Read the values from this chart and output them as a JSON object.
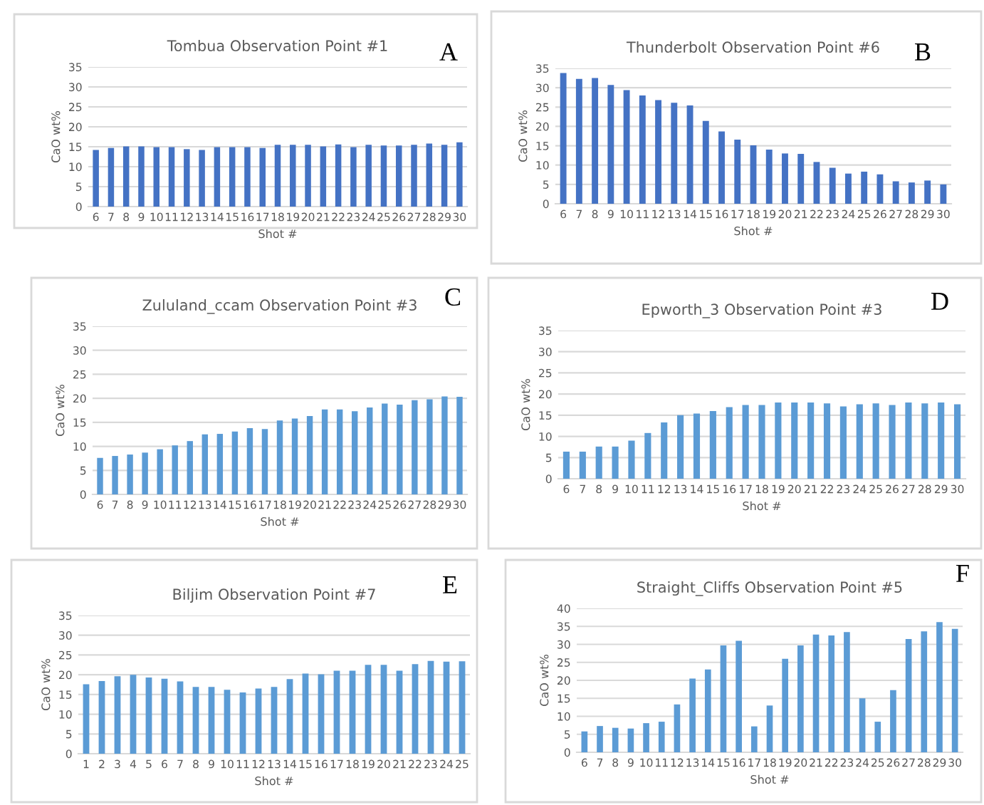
{
  "chart_data": [
    {
      "type": "bar",
      "title": "Tombua Observation Point #1",
      "xlabel": "Shot #",
      "ylabel": "CaO wt%",
      "annotations": [
        "A"
      ],
      "color": "#4472c4",
      "ylim": [
        0,
        35
      ],
      "yticks": [
        0,
        5,
        10,
        15,
        20,
        25,
        30,
        35
      ],
      "grid": "y",
      "categories": [
        "6",
        "7",
        "8",
        "9",
        "10",
        "11",
        "12",
        "13",
        "14",
        "15",
        "16",
        "17",
        "18",
        "19",
        "20",
        "21",
        "22",
        "23",
        "24",
        "25",
        "26",
        "27",
        "28",
        "29",
        "30"
      ],
      "values": [
        14.2,
        14.7,
        15.1,
        15.1,
        14.9,
        14.9,
        14.4,
        14.2,
        14.9,
        14.9,
        14.9,
        14.7,
        15.5,
        15.5,
        15.5,
        15.1,
        15.6,
        14.9,
        15.5,
        15.3,
        15.3,
        15.5,
        15.8,
        15.5,
        16.1
      ]
    },
    {
      "type": "bar",
      "title": "Thunderbolt Observation Point #6",
      "xlabel": "Shot #",
      "ylabel": "CaO wt%",
      "annotations": [
        "B"
      ],
      "color": "#4472c4",
      "ylim": [
        0,
        35
      ],
      "yticks": [
        0,
        5,
        10,
        15,
        20,
        25,
        30,
        35
      ],
      "grid": "y",
      "categories": [
        "6",
        "7",
        "8",
        "9",
        "10",
        "11",
        "12",
        "13",
        "14",
        "15",
        "16",
        "17",
        "18",
        "19",
        "20",
        "21",
        "22",
        "23",
        "24",
        "25",
        "26",
        "27",
        "28",
        "29",
        "30"
      ],
      "values": [
        33.8,
        32.3,
        32.5,
        30.7,
        29.4,
        28.0,
        26.8,
        26.1,
        25.4,
        21.4,
        18.7,
        16.6,
        15.1,
        14.0,
        13.0,
        12.9,
        10.8,
        9.3,
        7.8,
        8.3,
        7.6,
        5.8,
        5.5,
        6.0,
        5.0
      ]
    },
    {
      "type": "bar",
      "title": "Zululand_ccam Observation Point #3",
      "xlabel": "Shot #",
      "ylabel": "CaO wt%",
      "annotations": [
        "C"
      ],
      "color": "#5b9bd5",
      "ylim": [
        0,
        35
      ],
      "yticks": [
        0,
        5,
        10,
        15,
        20,
        25,
        30,
        35
      ],
      "grid": "y",
      "categories": [
        "6",
        "7",
        "8",
        "9",
        "10",
        "11",
        "12",
        "13",
        "14",
        "15",
        "16",
        "17",
        "18",
        "19",
        "20",
        "21",
        "22",
        "23",
        "24",
        "25",
        "26",
        "27",
        "28",
        "29",
        "30"
      ],
      "values": [
        7.6,
        8.0,
        8.3,
        8.7,
        9.4,
        10.2,
        11.1,
        12.5,
        12.6,
        13.1,
        13.8,
        13.6,
        15.4,
        15.8,
        16.3,
        17.7,
        17.7,
        17.3,
        18.1,
        18.9,
        18.7,
        19.6,
        19.8,
        20.4,
        20.3
      ]
    },
    {
      "type": "bar",
      "title": "Epworth_3 Observation Point #3",
      "xlabel": "Shot #",
      "ylabel": "CaO wt%",
      "annotations": [
        "D"
      ],
      "color": "#5b9bd5",
      "ylim": [
        0,
        35
      ],
      "yticks": [
        0,
        5,
        10,
        15,
        20,
        25,
        30,
        35
      ],
      "grid": "y",
      "categories": [
        "6",
        "7",
        "8",
        "9",
        "10",
        "11",
        "12",
        "13",
        "14",
        "15",
        "16",
        "17",
        "18",
        "19",
        "20",
        "21",
        "22",
        "23",
        "24",
        "25",
        "26",
        "27",
        "28",
        "29",
        "30"
      ],
      "values": [
        6.4,
        6.4,
        7.6,
        7.6,
        9.0,
        10.8,
        13.3,
        15.0,
        15.4,
        16.0,
        16.9,
        17.4,
        17.4,
        18.0,
        18.0,
        18.0,
        17.8,
        17.1,
        17.6,
        17.8,
        17.4,
        18.0,
        17.8,
        18.0,
        17.6
      ]
    },
    {
      "type": "bar",
      "title": "Biljim Observation Point #7",
      "xlabel": "Shot #",
      "ylabel": "CaO wt%",
      "annotations": [
        "E"
      ],
      "color": "#5b9bd5",
      "ylim": [
        0,
        35
      ],
      "yticks": [
        0,
        5,
        10,
        15,
        20,
        25,
        30,
        35
      ],
      "grid": "y",
      "categories": [
        "1",
        "2",
        "3",
        "4",
        "5",
        "6",
        "7",
        "8",
        "9",
        "10",
        "11",
        "12",
        "13",
        "14",
        "15",
        "16",
        "17",
        "18",
        "19",
        "20",
        "21",
        "22",
        "23",
        "24",
        "25"
      ],
      "values": [
        17.6,
        18.4,
        19.6,
        20.0,
        19.3,
        19.0,
        18.3,
        16.9,
        16.9,
        16.2,
        15.5,
        16.5,
        16.9,
        18.9,
        20.3,
        20.1,
        21.0,
        21.0,
        22.5,
        22.5,
        21.0,
        22.7,
        23.5,
        23.3,
        23.4
      ]
    },
    {
      "type": "bar",
      "title": "Straight_Cliffs Observation Point #5",
      "xlabel": "Shot #",
      "ylabel": "CaO wt%",
      "annotations": [
        "F"
      ],
      "color": "#5b9bd5",
      "ylim": [
        0,
        40
      ],
      "yticks": [
        0,
        5,
        10,
        15,
        20,
        25,
        30,
        35,
        40
      ],
      "grid": "y",
      "categories": [
        "6",
        "7",
        "8",
        "9",
        "10",
        "11",
        "12",
        "13",
        "14",
        "15",
        "16",
        "17",
        "18",
        "19",
        "20",
        "21",
        "22",
        "23",
        "24",
        "25",
        "26",
        "27",
        "28",
        "29",
        "30"
      ],
      "values": [
        5.8,
        7.3,
        6.8,
        6.6,
        8.1,
        8.5,
        13.3,
        20.5,
        23.0,
        29.7,
        31.0,
        7.2,
        13.0,
        26.0,
        29.7,
        32.7,
        32.5,
        33.4,
        15.0,
        8.5,
        17.3,
        31.5,
        33.6,
        36.2,
        34.3
      ]
    }
  ]
}
